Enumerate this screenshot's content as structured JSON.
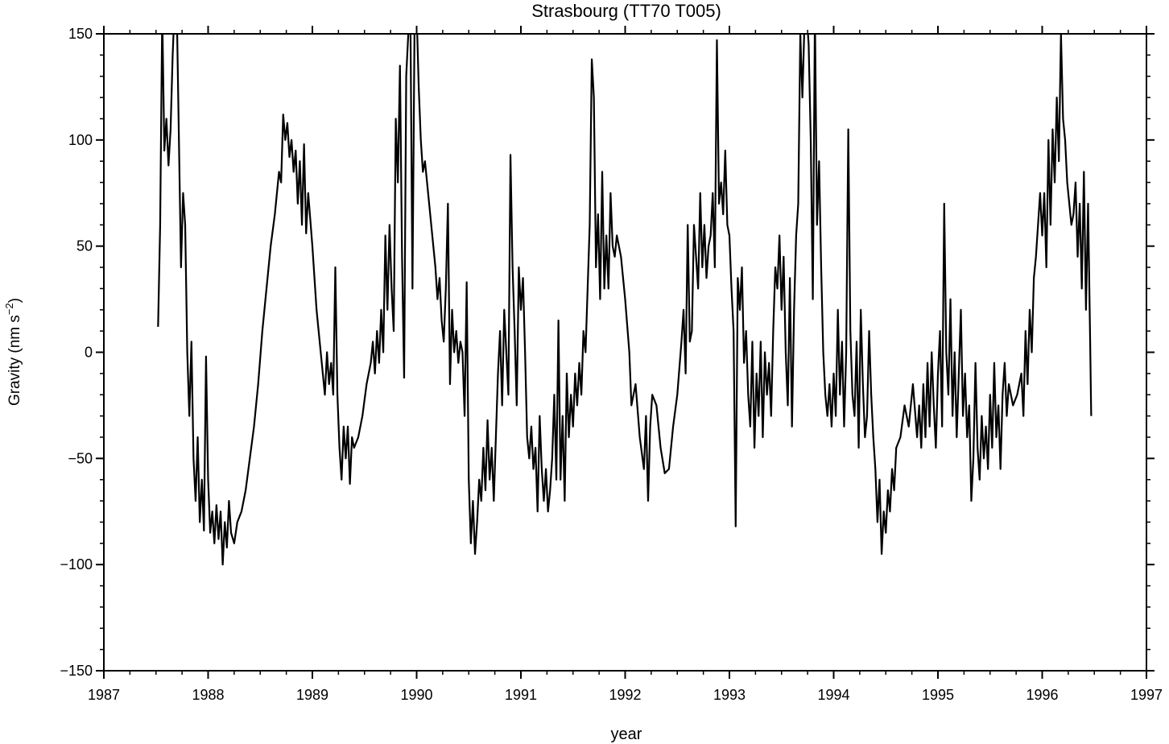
{
  "chart_data": {
    "type": "line",
    "title": "Strasbourg (TT70 T005)",
    "x_label": "year",
    "y_label": {
      "text": "Gravity (nm s",
      "superscript": "−2",
      "suffix": ")"
    },
    "xlim": [
      1987,
      1997
    ],
    "ylim": [
      -150,
      150
    ],
    "xticks": [
      1987,
      1988,
      1989,
      1990,
      1991,
      1992,
      1993,
      1994,
      1995,
      1996,
      1997
    ],
    "yticks": [
      {
        "value": -150,
        "label": "−150"
      },
      {
        "value": -100,
        "label": "−100"
      },
      {
        "value": -50,
        "label": "−50"
      },
      0,
      50,
      100,
      150
    ],
    "xminor": 0.25,
    "yminor": 10,
    "series": [
      {
        "color": "#000000",
        "x": [
          1987.52,
          1987.54,
          1987.56,
          1987.58,
          1987.6,
          1987.62,
          1987.64,
          1987.66,
          1987.68,
          1987.7,
          1987.72,
          1987.74,
          1987.76,
          1987.78,
          1987.8,
          1987.82,
          1987.84,
          1987.86,
          1987.88,
          1987.9,
          1987.92,
          1987.94,
          1987.96,
          1987.98,
          1988.0,
          1988.02,
          1988.04,
          1988.06,
          1988.08,
          1988.1,
          1988.12,
          1988.14,
          1988.16,
          1988.18,
          1988.2,
          1988.22,
          1988.25,
          1988.28,
          1988.32,
          1988.36,
          1988.4,
          1988.44,
          1988.48,
          1988.52,
          1988.56,
          1988.6,
          1988.64,
          1988.68,
          1988.7,
          1988.72,
          1988.74,
          1988.76,
          1988.78,
          1988.8,
          1988.82,
          1988.84,
          1988.86,
          1988.88,
          1988.9,
          1988.92,
          1988.94,
          1988.96,
          1989.0,
          1989.04,
          1989.08,
          1989.1,
          1989.12,
          1989.14,
          1989.16,
          1989.18,
          1989.2,
          1989.22,
          1989.24,
          1989.26,
          1989.28,
          1989.3,
          1989.32,
          1989.34,
          1989.36,
          1989.38,
          1989.4,
          1989.44,
          1989.48,
          1989.52,
          1989.56,
          1989.58,
          1989.6,
          1989.62,
          1989.64,
          1989.66,
          1989.68,
          1989.7,
          1989.72,
          1989.74,
          1989.76,
          1989.78,
          1989.8,
          1989.82,
          1989.84,
          1989.86,
          1989.88,
          1989.9,
          1989.92,
          1989.94,
          1989.96,
          1989.98,
          1990.0,
          1990.02,
          1990.04,
          1990.06,
          1990.08,
          1990.1,
          1990.14,
          1990.18,
          1990.2,
          1990.22,
          1990.24,
          1990.26,
          1990.28,
          1990.3,
          1990.32,
          1990.34,
          1990.36,
          1990.38,
          1990.4,
          1990.42,
          1990.44,
          1990.46,
          1990.48,
          1990.5,
          1990.52,
          1990.54,
          1990.56,
          1990.58,
          1990.6,
          1990.62,
          1990.64,
          1990.66,
          1990.68,
          1990.7,
          1990.72,
          1990.74,
          1990.76,
          1990.78,
          1990.8,
          1990.82,
          1990.84,
          1990.86,
          1990.88,
          1990.9,
          1990.92,
          1990.94,
          1990.96,
          1990.98,
          1991.0,
          1991.02,
          1991.04,
          1991.06,
          1991.08,
          1991.1,
          1991.12,
          1991.14,
          1991.16,
          1991.18,
          1991.2,
          1991.22,
          1991.24,
          1991.26,
          1991.28,
          1991.3,
          1991.32,
          1991.34,
          1991.36,
          1991.38,
          1991.4,
          1991.42,
          1991.44,
          1991.46,
          1991.48,
          1991.5,
          1991.52,
          1991.54,
          1991.56,
          1991.58,
          1991.6,
          1991.62,
          1991.64,
          1991.66,
          1991.68,
          1991.7,
          1991.72,
          1991.74,
          1991.76,
          1991.78,
          1991.8,
          1991.82,
          1991.84,
          1991.86,
          1991.88,
          1991.9,
          1991.92,
          1991.96,
          1992.0,
          1992.04,
          1992.06,
          1992.1,
          1992.14,
          1992.18,
          1992.2,
          1992.22,
          1992.24,
          1992.26,
          1992.3,
          1992.34,
          1992.38,
          1992.42,
          1992.46,
          1992.5,
          1992.54,
          1992.56,
          1992.58,
          1992.6,
          1992.62,
          1992.64,
          1992.66,
          1992.68,
          1992.7,
          1992.72,
          1992.74,
          1992.76,
          1992.78,
          1992.8,
          1992.82,
          1992.84,
          1992.86,
          1992.88,
          1992.9,
          1992.92,
          1992.94,
          1992.96,
          1992.98,
          1993.0,
          1993.02,
          1993.04,
          1993.06,
          1993.08,
          1993.1,
          1993.12,
          1993.14,
          1993.16,
          1993.18,
          1993.2,
          1993.22,
          1993.24,
          1993.26,
          1993.28,
          1993.3,
          1993.32,
          1993.34,
          1993.36,
          1993.38,
          1993.4,
          1993.42,
          1993.44,
          1993.46,
          1993.48,
          1993.5,
          1993.52,
          1993.54,
          1993.56,
          1993.58,
          1993.6,
          1993.62,
          1993.64,
          1993.66,
          1993.68,
          1993.7,
          1993.72,
          1993.74,
          1993.76,
          1993.78,
          1993.8,
          1993.82,
          1993.84,
          1993.86,
          1993.88,
          1993.9,
          1993.92,
          1993.94,
          1993.96,
          1993.98,
          1994.0,
          1994.02,
          1994.04,
          1994.06,
          1994.08,
          1994.1,
          1994.12,
          1994.14,
          1994.16,
          1994.18,
          1994.2,
          1994.22,
          1994.24,
          1994.26,
          1994.28,
          1994.3,
          1994.32,
          1994.34,
          1994.36,
          1994.38,
          1994.4,
          1994.42,
          1994.44,
          1994.46,
          1994.48,
          1994.5,
          1994.52,
          1994.54,
          1994.56,
          1994.58,
          1994.6,
          1994.64,
          1994.68,
          1994.72,
          1994.76,
          1994.8,
          1994.82,
          1994.84,
          1994.86,
          1994.88,
          1994.9,
          1994.92,
          1994.94,
          1994.96,
          1994.98,
          1995.0,
          1995.02,
          1995.04,
          1995.06,
          1995.08,
          1995.1,
          1995.12,
          1995.14,
          1995.16,
          1995.18,
          1995.2,
          1995.22,
          1995.24,
          1995.26,
          1995.28,
          1995.3,
          1995.32,
          1995.34,
          1995.36,
          1995.38,
          1995.4,
          1995.42,
          1995.44,
          1995.46,
          1995.48,
          1995.5,
          1995.52,
          1995.54,
          1995.56,
          1995.58,
          1995.6,
          1995.62,
          1995.64,
          1995.66,
          1995.68,
          1995.72,
          1995.76,
          1995.8,
          1995.82,
          1995.84,
          1995.86,
          1995.88,
          1995.9,
          1995.92,
          1995.94,
          1995.96,
          1995.98,
          1996.0,
          1996.02,
          1996.04,
          1996.06,
          1996.08,
          1996.1,
          1996.12,
          1996.14,
          1996.16,
          1996.18,
          1996.2,
          1996.22,
          1996.24,
          1996.26,
          1996.28,
          1996.3,
          1996.32,
          1996.34,
          1996.36,
          1996.38,
          1996.4,
          1996.42,
          1996.44,
          1996.46,
          1996.47
        ],
        "values": [
          12,
          60,
          160,
          95,
          110,
          88,
          105,
          140,
          165,
          160,
          100,
          40,
          75,
          60,
          0,
          -30,
          5,
          -50,
          -70,
          -40,
          -80,
          -60,
          -84,
          -2,
          -60,
          -85,
          -75,
          -90,
          -72,
          -88,
          -75,
          -100,
          -80,
          -92,
          -70,
          -85,
          -90,
          -80,
          -75,
          -65,
          -50,
          -35,
          -15,
          10,
          30,
          50,
          65,
          85,
          80,
          112,
          100,
          108,
          92,
          100,
          85,
          95,
          70,
          90,
          60,
          98,
          56,
          75,
          50,
          20,
          0,
          -10,
          -20,
          0,
          -15,
          -5,
          -20,
          40,
          -20,
          -45,
          -60,
          -35,
          -50,
          -35,
          -62,
          -40,
          -45,
          -40,
          -30,
          -15,
          -5,
          5,
          -10,
          10,
          -5,
          20,
          0,
          55,
          20,
          60,
          30,
          10,
          110,
          80,
          135,
          45,
          -12,
          130,
          150,
          160,
          30,
          155,
          160,
          125,
          100,
          85,
          90,
          80,
          60,
          40,
          25,
          35,
          15,
          5,
          30,
          70,
          -15,
          20,
          0,
          10,
          -5,
          5,
          0,
          -30,
          33,
          -60,
          -90,
          -70,
          -95,
          -80,
          -60,
          -70,
          -45,
          -65,
          -32,
          -60,
          -45,
          -70,
          -40,
          -10,
          10,
          -25,
          20,
          0,
          -20,
          93,
          40,
          10,
          -25,
          40,
          20,
          35,
          0,
          -40,
          -50,
          -35,
          -55,
          -45,
          -75,
          -30,
          -55,
          -70,
          -55,
          -75,
          -65,
          -50,
          -20,
          -60,
          15,
          -60,
          -30,
          -70,
          -10,
          -40,
          -20,
          -35,
          -10,
          -25,
          -5,
          -20,
          10,
          0,
          30,
          60,
          138,
          120,
          40,
          65,
          25,
          85,
          30,
          55,
          30,
          75,
          50,
          45,
          55,
          45,
          25,
          0,
          -25,
          -15,
          -40,
          -55,
          -30,
          -70,
          -35,
          -20,
          -25,
          -45,
          -57,
          -55,
          -35,
          -20,
          5,
          20,
          -10,
          60,
          5,
          10,
          60,
          45,
          30,
          75,
          40,
          60,
          35,
          50,
          55,
          75,
          40,
          147,
          70,
          80,
          65,
          95,
          60,
          55,
          30,
          10,
          -82,
          35,
          20,
          40,
          -5,
          10,
          -20,
          -35,
          5,
          -45,
          -10,
          -30,
          5,
          -40,
          0,
          -20,
          -5,
          -30,
          10,
          40,
          30,
          55,
          20,
          45,
          0,
          -25,
          35,
          -35,
          20,
          55,
          70,
          150,
          120,
          155,
          160,
          145,
          100,
          25,
          160,
          60,
          90,
          40,
          0,
          -20,
          -30,
          -15,
          -35,
          -10,
          -30,
          20,
          -20,
          5,
          -35,
          0,
          105,
          10,
          -20,
          -30,
          5,
          -45,
          20,
          -15,
          -40,
          -30,
          10,
          -20,
          -40,
          -55,
          -80,
          -60,
          -95,
          -75,
          -85,
          -65,
          -75,
          -55,
          -65,
          -45,
          -40,
          -25,
          -35,
          -15,
          -40,
          -25,
          -45,
          -15,
          -40,
          -5,
          -35,
          0,
          -25,
          -45,
          -10,
          10,
          -35,
          70,
          0,
          -20,
          25,
          -30,
          0,
          -40,
          -10,
          20,
          -30,
          -10,
          -40,
          -25,
          -70,
          -50,
          -5,
          -45,
          -60,
          -30,
          -50,
          -35,
          -55,
          -20,
          -45,
          -5,
          -40,
          -25,
          -55,
          -20,
          -5,
          -30,
          -15,
          -25,
          -20,
          -10,
          -30,
          10,
          -15,
          20,
          0,
          35,
          45,
          60,
          75,
          55,
          75,
          40,
          100,
          60,
          105,
          80,
          120,
          90,
          150,
          110,
          100,
          80,
          70,
          60,
          65,
          80,
          45,
          70,
          30,
          85,
          20,
          70,
          5,
          -30
        ]
      }
    ]
  }
}
